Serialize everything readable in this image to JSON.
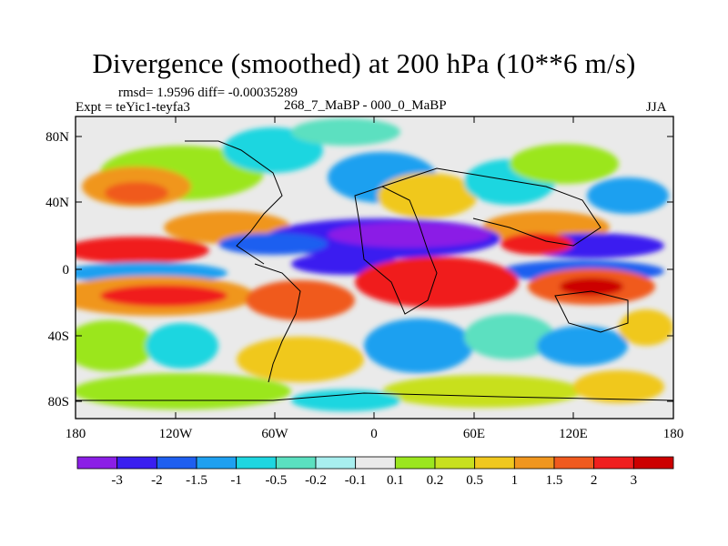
{
  "title": "Divergence (smoothed) at 200 hPa (10**6 m/s)",
  "stats": "rmsd= 1.9596 diff= -0.00035289",
  "experiment": "Expt = teYic1-teyfa3",
  "comparison": "268_7_MaBP - 000_0_MaBP",
  "season": "JJA",
  "axes": {
    "lat_ticks": [
      "80N",
      "40N",
      "0",
      "40S",
      "80S"
    ],
    "lon_ticks": [
      "180",
      "120W",
      "60W",
      "0",
      "60E",
      "120E",
      "180"
    ]
  },
  "colorbar": {
    "labels": [
      "-3",
      "-2",
      "-1.5",
      "-1",
      "-0.5",
      "-0.2",
      "-0.1",
      "0.1",
      "0.2",
      "0.5",
      "1",
      "1.5",
      "2",
      "3"
    ],
    "colors": [
      "#8b1fe6",
      "#3a1ff0",
      "#1f5ff0",
      "#1fa0f0",
      "#1fd6e0",
      "#5be0c0",
      "#a8efef",
      "#eaeaea",
      "#9be61f",
      "#c8e01f",
      "#f0c81f",
      "#f0961f",
      "#f05a1f",
      "#f01f1f",
      "#cc0000"
    ]
  },
  "chart_data": {
    "type": "heatmap",
    "title": "Divergence (smoothed) at 200 hPa (10**6 m/s)",
    "variable": "Divergence (smoothed) at 200 hPa",
    "units": "10**6 m/s",
    "season": "JJA",
    "contour_levels": [
      -3,
      -2,
      -1.5,
      -1,
      -0.5,
      -0.2,
      -0.1,
      0.1,
      0.2,
      0.5,
      1,
      1.5,
      2,
      3
    ],
    "lon_range": [
      -180,
      180
    ],
    "lat_range": [
      -90,
      90
    ]
  }
}
